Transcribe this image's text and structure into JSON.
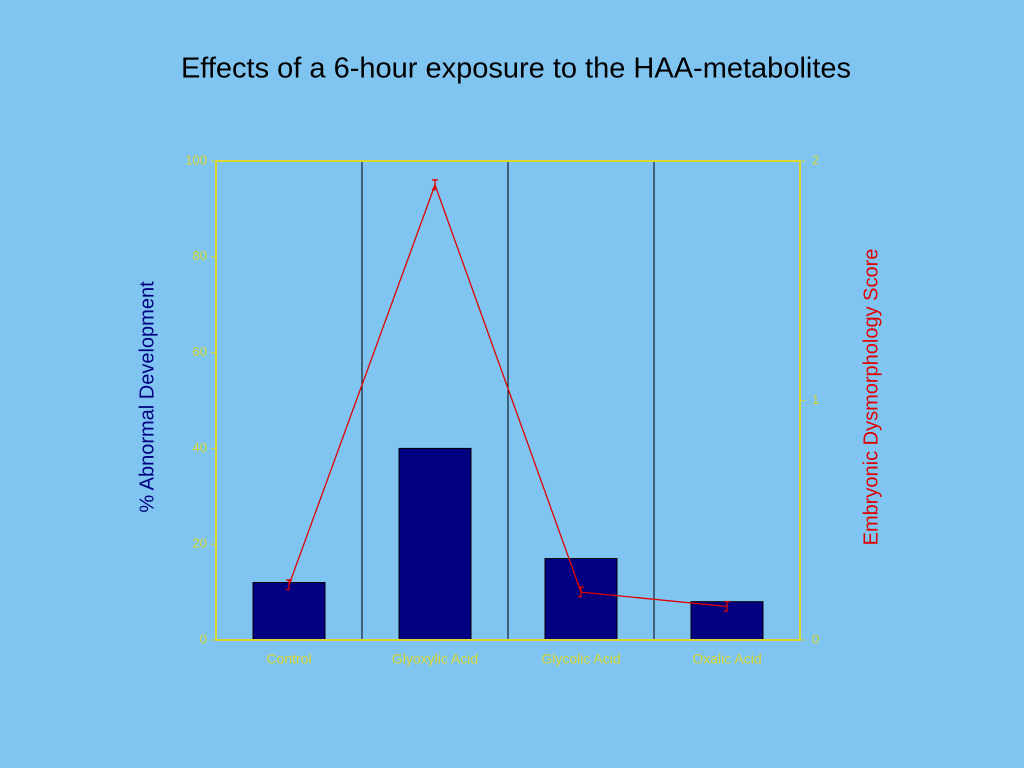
{
  "chart_data": {
    "type": "bar",
    "title": "Effects of a 6-hour exposure to the HAA-metabolites",
    "y_label": "% Abnormal Development",
    "y2_label": "Embryonic Dysmorphology Score",
    "categories": [
      "Control",
      "Glyoxylic Acid",
      "Glycolic Acid",
      "Oxalic Acid"
    ],
    "series": [
      {
        "type": "bar",
        "color": "#000080",
        "values": [
          12,
          40,
          17,
          8
        ]
      },
      {
        "type": "line",
        "axis": "y2",
        "color": "#e00000",
        "values": [
          0.23,
          1.9,
          0.2,
          0.14
        ]
      }
    ],
    "ylim": [
      0,
      100
    ],
    "yticks": [
      0,
      20,
      40,
      60,
      80,
      100
    ],
    "y2lim": [
      0,
      2
    ],
    "y2ticks": [
      0,
      1,
      2
    ],
    "axis_color": "#d8d830"
  }
}
